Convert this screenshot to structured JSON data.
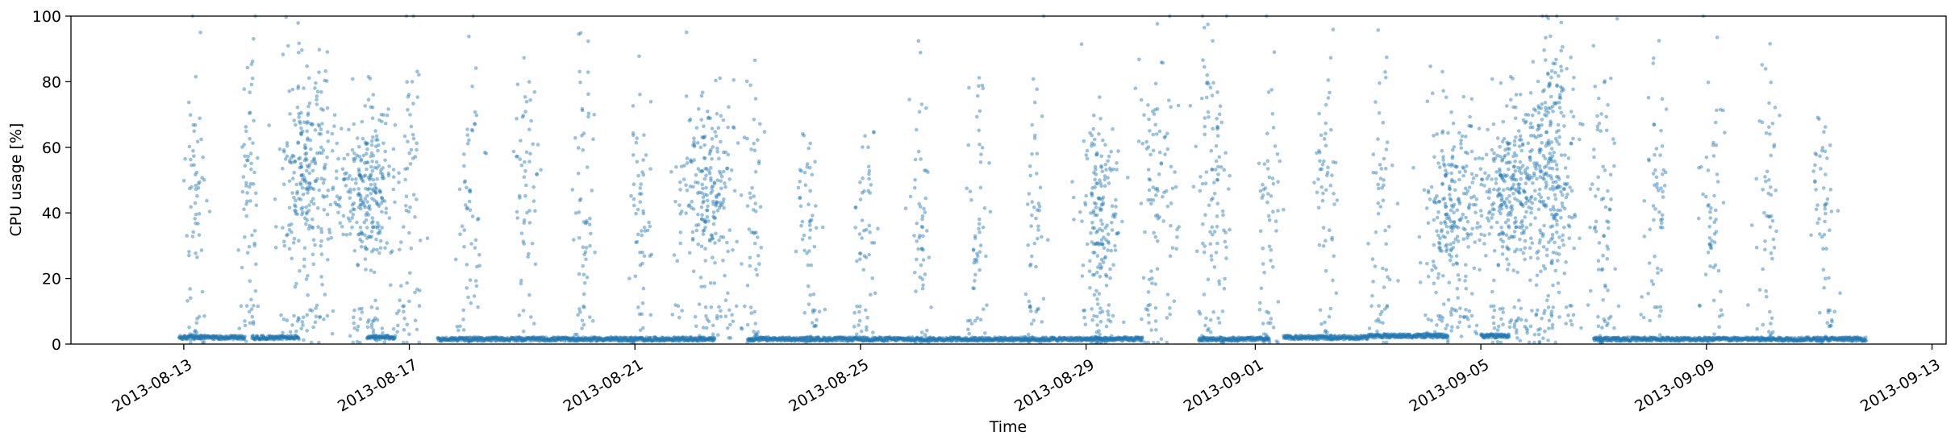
{
  "chart_data": {
    "type": "scatter",
    "title": "",
    "xlabel": "Time",
    "ylabel": "CPU usage [%]",
    "xlim": [
      "2013-08-11T00:00:00",
      "2013-09-13T06:00:00"
    ],
    "ylim": [
      0,
      100
    ],
    "x_ticks": [
      "2013-08-13",
      "2013-08-17",
      "2013-08-21",
      "2013-08-25",
      "2013-08-29",
      "2013-09-01",
      "2013-09-05",
      "2013-09-09",
      "2013-09-13"
    ],
    "y_ticks": [
      0,
      20,
      40,
      60,
      80,
      100
    ],
    "grid": false,
    "legend": "none",
    "marker_color": "#1f77b4",
    "marker_alpha": 0.45,
    "data_start": "2013-08-13T00:00:00",
    "baseline_segments": [
      {
        "start": "2013-08-12T22:00:00",
        "end": "2013-08-14T02:00:00",
        "level": 2
      },
      {
        "start": "2013-08-14T05:00:00",
        "end": "2013-08-15T01:00:00",
        "level": 2
      },
      {
        "start": "2013-08-16T06:00:00",
        "end": "2013-08-16T18:00:00",
        "level": 2
      },
      {
        "start": "2013-08-17T12:00:00",
        "end": "2013-08-22T10:00:00",
        "level": 1.5
      },
      {
        "start": "2013-08-23T00:00:00",
        "end": "2013-08-29T00:00:00",
        "level": 1.5
      },
      {
        "start": "2013-08-29T00:00:00",
        "end": "2013-08-30T00:00:00",
        "level": 1.5
      },
      {
        "start": "2013-08-31T00:00:00",
        "end": "2013-09-01T06:00:00",
        "level": 1.5
      },
      {
        "start": "2013-09-01T12:00:00",
        "end": "2013-09-03T00:00:00",
        "level": 2
      },
      {
        "start": "2013-09-03T00:00:00",
        "end": "2013-09-04T10:00:00",
        "level": 2.5
      },
      {
        "start": "2013-09-05T00:00:00",
        "end": "2013-09-05T12:00:00",
        "level": 2.5
      },
      {
        "start": "2013-09-07T00:00:00",
        "end": "2013-09-11T20:00:00",
        "level": 1.5
      }
    ],
    "activity_clusters": [
      {
        "center": "2013-08-13T05:00:00",
        "spread_hours": 5,
        "mean": 45,
        "sd": 25,
        "count": 70
      },
      {
        "center": "2013-08-14T04:00:00",
        "spread_hours": 4,
        "mean": 45,
        "sd": 25,
        "count": 70
      },
      {
        "center": "2013-08-15T05:00:00",
        "spread_hours": 12,
        "mean": 52,
        "sd": 16,
        "count": 280
      },
      {
        "center": "2013-08-16T06:00:00",
        "spread_hours": 12,
        "mean": 45,
        "sd": 14,
        "count": 300
      },
      {
        "center": "2013-08-17T00:00:00",
        "spread_hours": 5,
        "mean": 50,
        "sd": 25,
        "count": 60
      },
      {
        "center": "2013-08-18T02:00:00",
        "spread_hours": 5,
        "mean": 45,
        "sd": 22,
        "count": 60
      },
      {
        "center": "2013-08-19T02:00:00",
        "spread_hours": 5,
        "mean": 45,
        "sd": 22,
        "count": 60
      },
      {
        "center": "2013-08-20T02:00:00",
        "spread_hours": 5,
        "mean": 45,
        "sd": 22,
        "count": 60
      },
      {
        "center": "2013-08-21T02:00:00",
        "spread_hours": 5,
        "mean": 45,
        "sd": 22,
        "count": 60
      },
      {
        "center": "2013-08-22T06:00:00",
        "spread_hours": 12,
        "mean": 48,
        "sd": 15,
        "count": 250
      },
      {
        "center": "2013-08-23T02:00:00",
        "spread_hours": 5,
        "mean": 40,
        "sd": 22,
        "count": 60
      },
      {
        "center": "2013-08-24T02:00:00",
        "spread_hours": 5,
        "mean": 40,
        "sd": 22,
        "count": 60
      },
      {
        "center": "2013-08-25T02:00:00",
        "spread_hours": 5,
        "mean": 40,
        "sd": 22,
        "count": 55
      },
      {
        "center": "2013-08-26T02:00:00",
        "spread_hours": 5,
        "mean": 40,
        "sd": 22,
        "count": 55
      },
      {
        "center": "2013-08-27T02:00:00",
        "spread_hours": 5,
        "mean": 40,
        "sd": 22,
        "count": 55
      },
      {
        "center": "2013-08-28T02:00:00",
        "spread_hours": 5,
        "mean": 40,
        "sd": 22,
        "count": 55
      },
      {
        "center": "2013-08-29T06:00:00",
        "spread_hours": 8,
        "mean": 38,
        "sd": 15,
        "count": 200
      },
      {
        "center": "2013-08-30T06:00:00",
        "spread_hours": 8,
        "mean": 45,
        "sd": 22,
        "count": 110
      },
      {
        "center": "2013-08-31T06:00:00",
        "spread_hours": 8,
        "mean": 50,
        "sd": 22,
        "count": 110
      },
      {
        "center": "2013-09-01T06:00:00",
        "spread_hours": 5,
        "mean": 45,
        "sd": 22,
        "count": 60
      },
      {
        "center": "2013-09-02T06:00:00",
        "spread_hours": 5,
        "mean": 45,
        "sd": 22,
        "count": 60
      },
      {
        "center": "2013-09-03T06:00:00",
        "spread_hours": 5,
        "mean": 45,
        "sd": 22,
        "count": 60
      },
      {
        "center": "2013-09-04T12:00:00",
        "spread_hours": 12,
        "mean": 40,
        "sd": 15,
        "count": 250
      },
      {
        "center": "2013-09-05T12:00:00",
        "spread_hours": 14,
        "mean": 45,
        "sd": 14,
        "count": 350
      },
      {
        "center": "2013-09-06T06:00:00",
        "spread_hours": 10,
        "mean": 55,
        "sd": 20,
        "count": 300
      },
      {
        "center": "2013-09-07T04:00:00",
        "spread_hours": 6,
        "mean": 45,
        "sd": 25,
        "count": 80
      },
      {
        "center": "2013-09-08T02:00:00",
        "spread_hours": 5,
        "mean": 45,
        "sd": 22,
        "count": 60
      },
      {
        "center": "2013-09-09T02:00:00",
        "spread_hours": 5,
        "mean": 45,
        "sd": 22,
        "count": 60
      },
      {
        "center": "2013-09-10T02:00:00",
        "spread_hours": 5,
        "mean": 45,
        "sd": 22,
        "count": 60
      },
      {
        "center": "2013-09-11T02:00:00",
        "spread_hours": 5,
        "mean": 45,
        "sd": 22,
        "count": 60
      }
    ]
  }
}
